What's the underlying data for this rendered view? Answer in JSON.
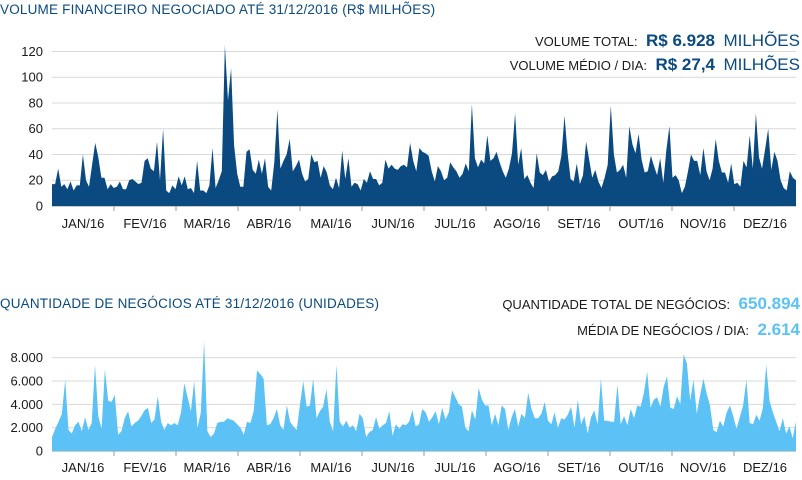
{
  "colors": {
    "primary": "#0a4a80",
    "secondary": "#5cc2f5",
    "text": "#1a1a1a"
  },
  "chart_data": [
    {
      "type": "area",
      "title": "VOLUME FINANCEIRO NEGOCIADO ATÉ 31/12/2016 (R$ MILHÕES)",
      "stats": [
        {
          "label": "VOLUME TOTAL:",
          "value": "R$ 6.928",
          "unit": "MILHÕES"
        },
        {
          "label": "VOLUME MÉDIO / DIA:",
          "value": "R$ 27,4",
          "unit": "MILHÕES"
        }
      ],
      "yticks": [
        "0",
        "20",
        "40",
        "60",
        "80",
        "100",
        "120"
      ],
      "ylim": [
        0,
        125
      ],
      "months": [
        "JAN/16",
        "FEV/16",
        "MAR/16",
        "ABR/16",
        "MAI/16",
        "JUN/16",
        "JUL/16",
        "AGO/16",
        "SET/16",
        "OUT/16",
        "NOV/16",
        "DEZ/16"
      ],
      "color": "#0a4a80",
      "values": [
        17,
        17,
        29,
        15,
        17,
        13,
        19,
        12,
        16,
        16,
        40,
        20,
        15,
        32,
        49,
        38,
        22,
        22,
        13,
        17,
        14,
        15,
        19,
        13,
        13,
        20,
        21,
        19,
        17,
        18,
        35,
        37,
        29,
        27,
        50,
        20,
        60,
        12,
        10,
        16,
        13,
        23,
        16,
        23,
        13,
        14,
        10,
        35,
        12,
        12,
        10,
        16,
        45,
        14,
        20,
        27,
        125,
        82,
        107,
        47,
        25,
        15,
        15,
        42,
        44,
        28,
        25,
        36,
        25,
        37,
        15,
        12,
        34,
        75,
        29,
        35,
        40,
        52,
        27,
        31,
        36,
        25,
        19,
        21,
        40,
        34,
        35,
        22,
        31,
        26,
        16,
        13,
        22,
        14,
        43,
        21,
        37,
        15,
        18,
        17,
        12,
        21,
        18,
        27,
        21,
        21,
        16,
        18,
        36,
        29,
        32,
        29,
        28,
        31,
        32,
        30,
        49,
        35,
        27,
        45,
        42,
        41,
        39,
        27,
        19,
        31,
        27,
        20,
        22,
        34,
        30,
        27,
        22,
        25,
        33,
        27,
        79,
        37,
        30,
        36,
        33,
        55,
        35,
        37,
        42,
        34,
        27,
        22,
        29,
        41,
        72,
        32,
        45,
        21,
        24,
        18,
        14,
        41,
        26,
        24,
        28,
        19,
        23,
        24,
        27,
        39,
        70,
        41,
        21,
        19,
        33,
        17,
        24,
        50,
        36,
        22,
        28,
        19,
        14,
        22,
        32,
        78,
        40,
        26,
        28,
        32,
        22,
        62,
        48,
        41,
        56,
        36,
        26,
        27,
        39,
        31,
        24,
        37,
        18,
        43,
        62,
        22,
        24,
        20,
        10,
        15,
        27,
        40,
        35,
        35,
        24,
        45,
        27,
        20,
        29,
        52,
        35,
        26,
        26,
        18,
        33,
        17,
        18,
        15,
        35,
        30,
        55,
        29,
        72,
        38,
        29,
        44,
        60,
        28,
        42,
        35,
        20,
        14,
        12,
        27,
        22,
        20
      ]
    },
    {
      "type": "area",
      "title": "QUANTIDADE DE NEGÓCIOS ATÉ 31/12/2016 (UNIDADES)",
      "stats": [
        {
          "label": "QUANTIDADE TOTAL DE NEGÓCIOS:",
          "value": "650.894"
        },
        {
          "label": "MÉDIA DE NEGÓCIOS / DIA:",
          "value": "2.614"
        }
      ],
      "yticks": [
        "0",
        "2.000",
        "4.000",
        "6.000",
        "8.000"
      ],
      "ylim": [
        0,
        9000
      ],
      "months": [
        "JAN/16",
        "FEV/16",
        "MAR/16",
        "ABR/16",
        "MAI/16",
        "JUN/16",
        "JUL/16",
        "AGO/16",
        "SET/16",
        "OUT/16",
        "NOV/16",
        "DEZ/16"
      ],
      "color": "#5cc2f5",
      "values": [
        1200,
        1900,
        2500,
        3200,
        6100,
        1800,
        1500,
        2200,
        2500,
        1700,
        2900,
        1800,
        2400,
        7400,
        3000,
        1900,
        7000,
        4300,
        4200,
        4800,
        1400,
        1700,
        2800,
        3400,
        2100,
        2400,
        2600,
        3000,
        3500,
        3700,
        2400,
        2700,
        4700,
        2500,
        1800,
        2400,
        2200,
        2400,
        2200,
        3300,
        5800,
        4600,
        3400,
        6000,
        2000,
        3300,
        9400,
        1700,
        1200,
        1500,
        2400,
        2500,
        2500,
        2800,
        2700,
        2600,
        2300,
        2000,
        1400,
        2500,
        2400,
        3400,
        6900,
        6600,
        6200,
        2200,
        2300,
        2800,
        3600,
        2200,
        1800,
        3900,
        2500,
        2100,
        1800,
        4000,
        6000,
        3800,
        3900,
        6200,
        2800,
        3400,
        3800,
        5300,
        2500,
        1700,
        7400,
        2500,
        2100,
        2600,
        2000,
        2200,
        1700,
        3200,
        2800,
        1200,
        1600,
        1800,
        2900,
        1900,
        2200,
        2400,
        3400,
        1300,
        2300,
        1900,
        2300,
        2200,
        2500,
        3500,
        2100,
        2300,
        3600,
        3300,
        2500,
        2900,
        3400,
        2300,
        3700,
        2700,
        3300,
        5200,
        4600,
        4000,
        3800,
        2000,
        1700,
        3500,
        2700,
        5400,
        4400,
        3900,
        3900,
        2200,
        3200,
        2200,
        3900,
        3600,
        1800,
        2900,
        3600,
        2100,
        3200,
        2800,
        5000,
        3600,
        2800,
        2800,
        3200,
        4200,
        2600,
        2300,
        3300,
        2000,
        2800,
        2700,
        3100,
        3800,
        2000,
        4400,
        2300,
        3000,
        1500,
        2900,
        3500,
        2300,
        6200,
        2600,
        2600,
        2500,
        2500,
        5700,
        2300,
        3000,
        2200,
        3600,
        2800,
        3900,
        3800,
        5000,
        6800,
        3700,
        4400,
        4600,
        3800,
        5500,
        6400,
        3700,
        3600,
        4700,
        4000,
        8300,
        7500,
        4300,
        6100,
        3200,
        4800,
        6200,
        4900,
        3900,
        1800,
        1600,
        2600,
        2100,
        3300,
        3900,
        3000,
        1900,
        2900,
        3900,
        6100,
        2400,
        2300,
        3100,
        2600,
        3700,
        7400,
        4300,
        3300,
        2500,
        1700,
        2800,
        1500,
        2100,
        1100,
        2500
      ]
    }
  ]
}
